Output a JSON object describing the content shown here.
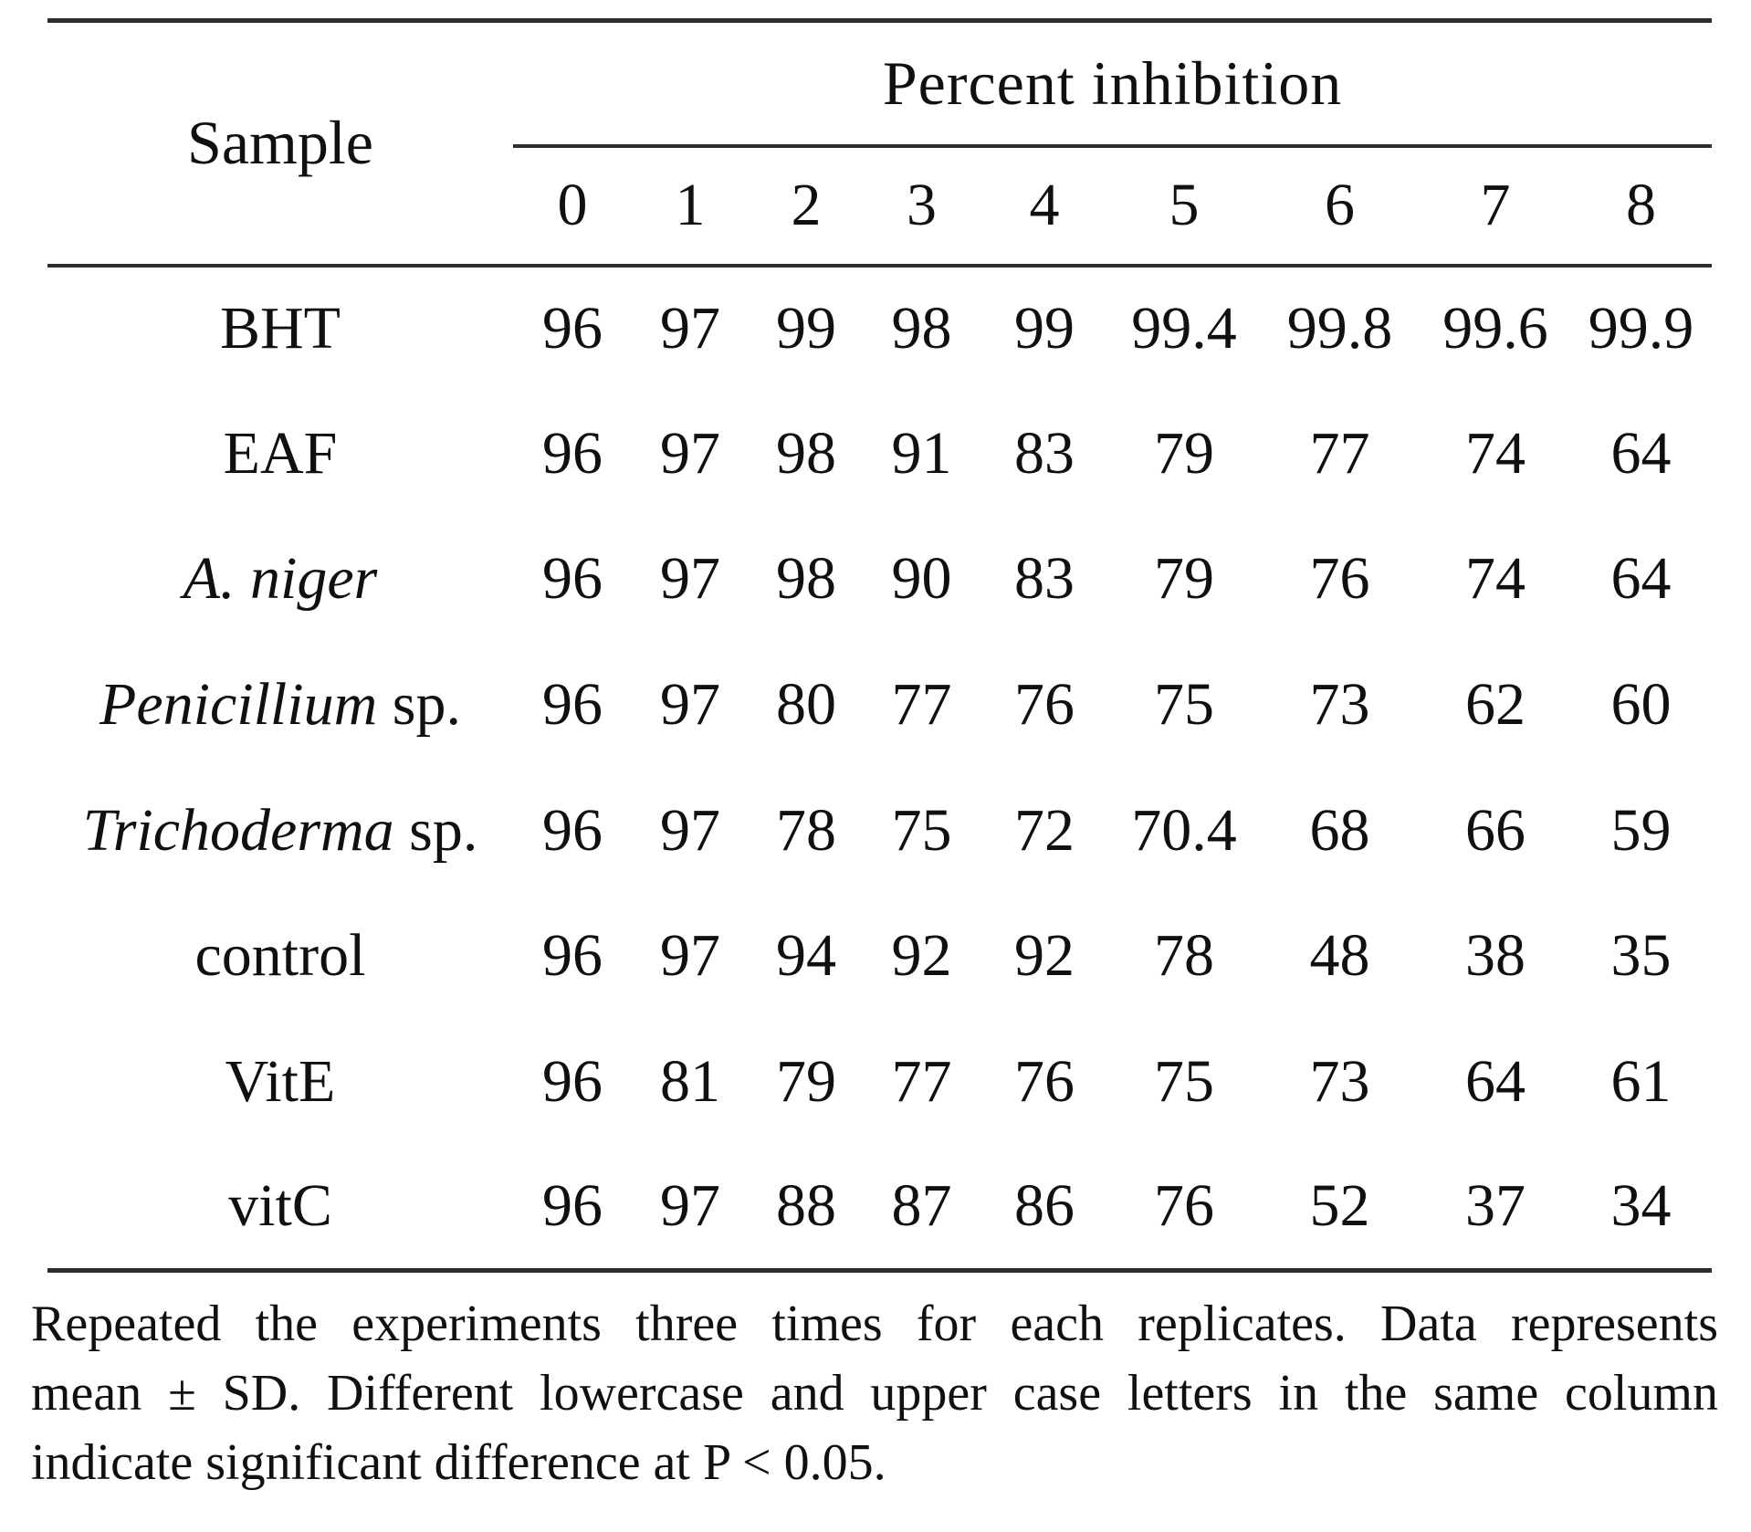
{
  "table": {
    "sample_header": "Sample",
    "group_header": "Percent inhibition",
    "col_headers": [
      "0",
      "1",
      "2",
      "3",
      "4",
      "5",
      "6",
      "7",
      "8"
    ],
    "rows": [
      {
        "label_italic": "",
        "label_roman": "BHT",
        "values": [
          "96",
          "97",
          "99",
          "98",
          "99",
          "99.4",
          "99.8",
          "99.6",
          "99.9"
        ]
      },
      {
        "label_italic": "",
        "label_roman": "EAF",
        "values": [
          "96",
          "97",
          "98",
          "91",
          "83",
          "79",
          "77",
          "74",
          "64"
        ]
      },
      {
        "label_italic": "A. niger",
        "label_roman": "",
        "values": [
          "96",
          "97",
          "98",
          "90",
          "83",
          "79",
          "76",
          "74",
          "64"
        ]
      },
      {
        "label_italic": "Penicillium",
        "label_roman": " sp.",
        "values": [
          "96",
          "97",
          "80",
          "77",
          "76",
          "75",
          "73",
          "62",
          "60"
        ]
      },
      {
        "label_italic": "Trichoderma",
        "label_roman": " sp.",
        "values": [
          "96",
          "97",
          "78",
          "75",
          "72",
          "70.4",
          "68",
          "66",
          "59"
        ]
      },
      {
        "label_italic": "",
        "label_roman": "control",
        "values": [
          "96",
          "97",
          "94",
          "92",
          "92",
          "78",
          "48",
          "38",
          "35"
        ]
      },
      {
        "label_italic": "",
        "label_roman": "VitE",
        "values": [
          "96",
          "81",
          "79",
          "77",
          "76",
          "75",
          "73",
          "64",
          "61"
        ]
      },
      {
        "label_italic": "",
        "label_roman": "vitC",
        "values": [
          "96",
          "97",
          "88",
          "87",
          "86",
          "76",
          "52",
          "37",
          "34"
        ]
      }
    ]
  },
  "footnote": {
    "lines": [
      "Repeated the experiments three times for each replicates. Data represents",
      "mean ± SD. Different lowercase and upper case letters in the same column",
      "indicate significant difference at P < 0.05."
    ]
  }
}
